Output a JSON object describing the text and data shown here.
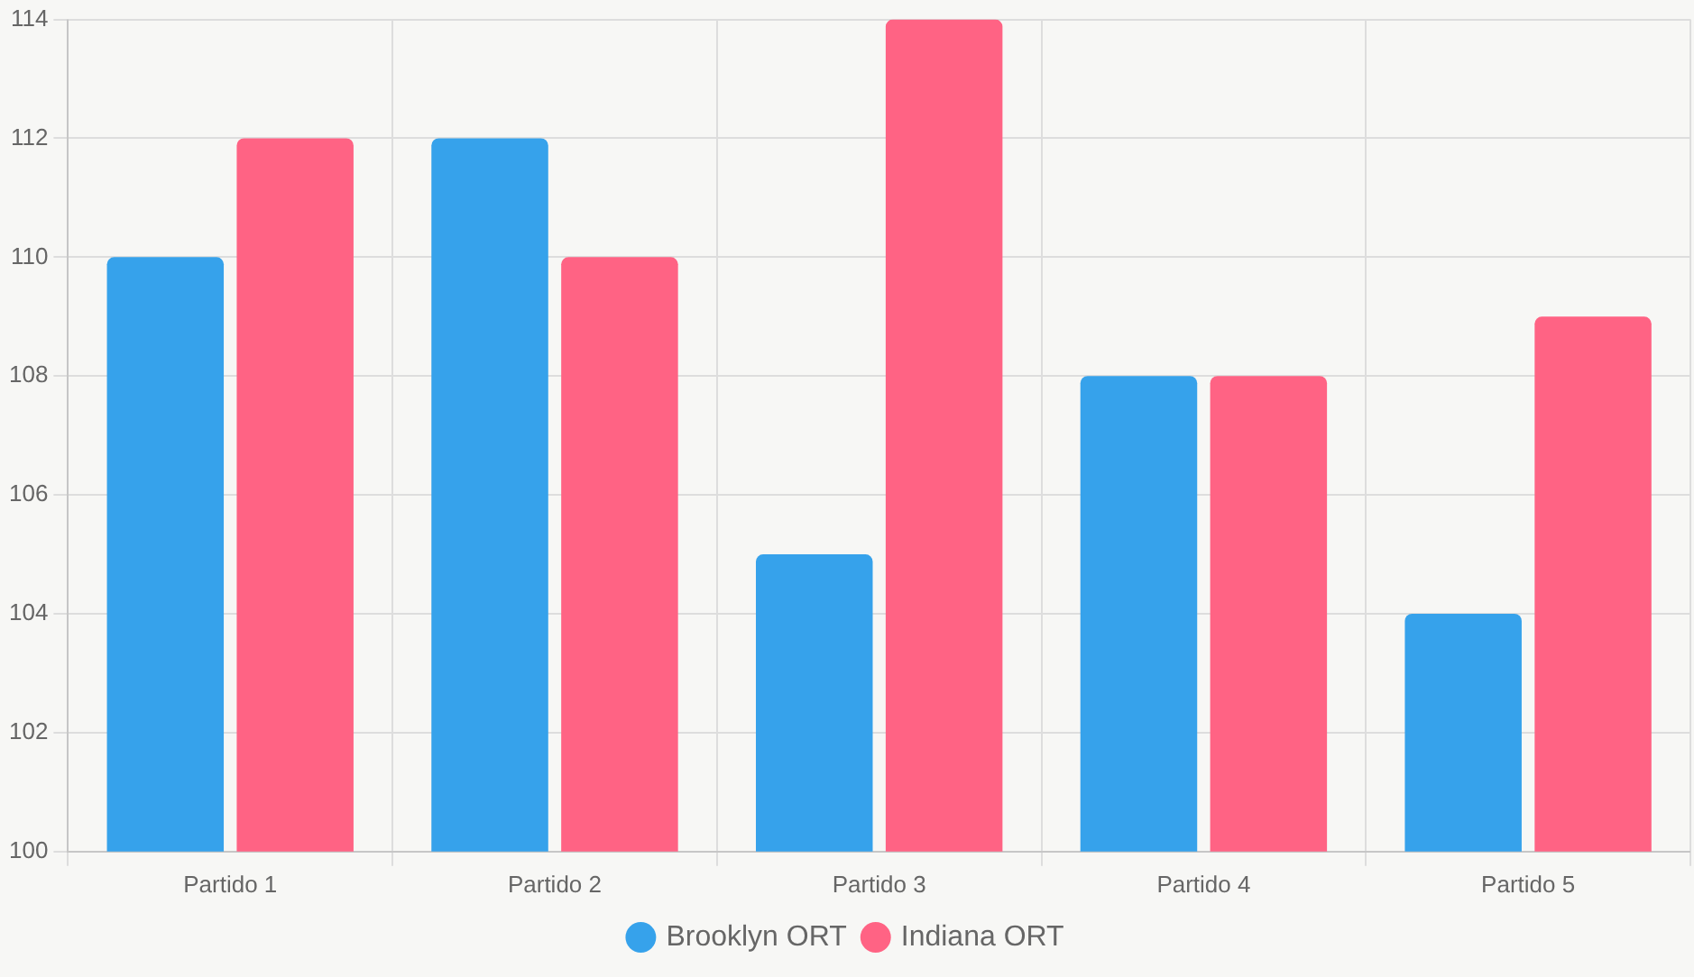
{
  "chart_data": {
    "type": "bar",
    "categories": [
      "Partido 1",
      "Partido 2",
      "Partido 3",
      "Partido 4",
      "Partido 5"
    ],
    "series": [
      {
        "name": "Brooklyn ORT",
        "color": "#36a2eb",
        "values": [
          110,
          112,
          105,
          108,
          104
        ]
      },
      {
        "name": "Indiana ORT",
        "color": "#ff6384",
        "values": [
          112,
          110,
          114,
          108,
          109
        ]
      }
    ],
    "ylim": [
      100,
      114
    ],
    "yticks": [
      100,
      102,
      104,
      106,
      108,
      110,
      112,
      114
    ],
    "grid": true,
    "legend": "bottom"
  }
}
